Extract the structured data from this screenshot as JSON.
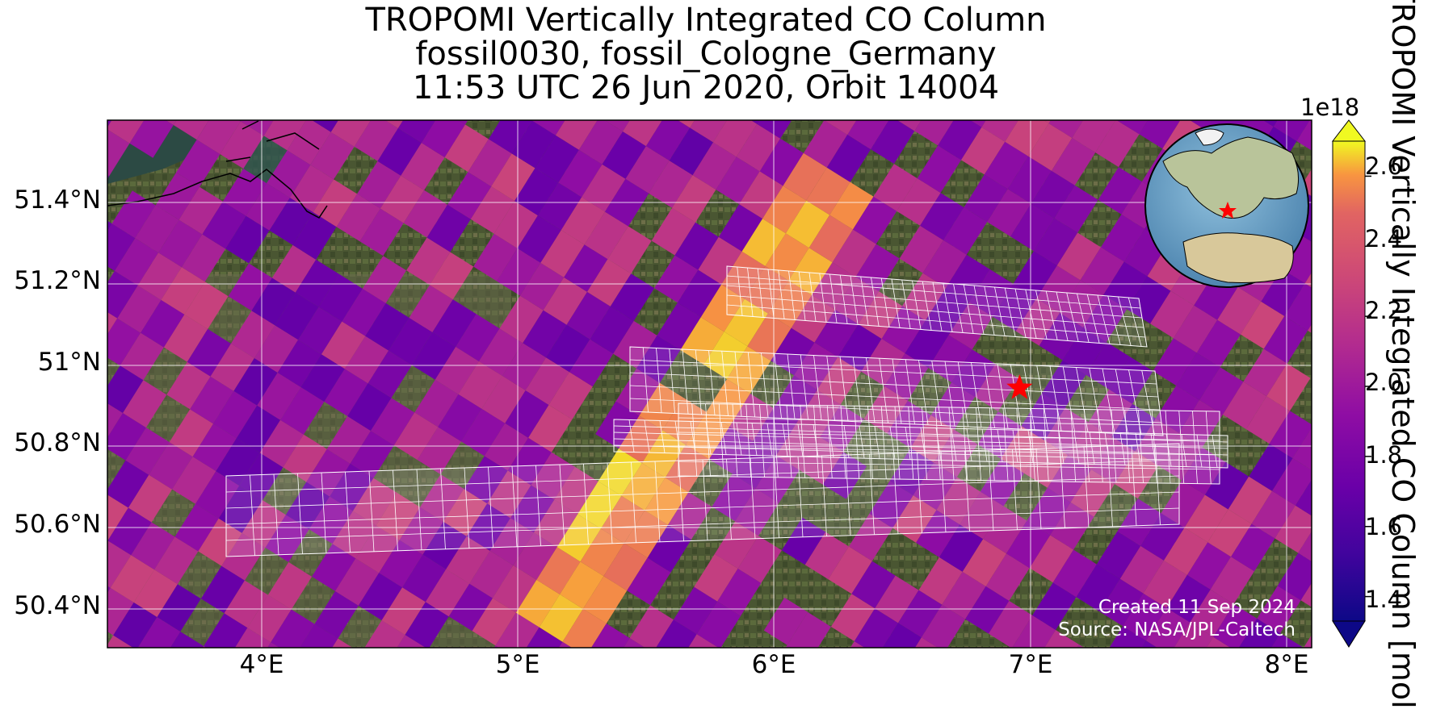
{
  "title": {
    "line1": "TROPOMI Vertically Integrated CO Column",
    "line2": "fossil0030, fossil_Cologne_Germany",
    "line3": "11:53 UTC 26 Jun 2020, Orbit 14004"
  },
  "axes": {
    "lat_labels": [
      "51.4°N",
      "51.2°N",
      "51°N",
      "50.8°N",
      "50.6°N",
      "50.4°N"
    ],
    "lon_labels": [
      "4°E",
      "5°E",
      "6°E",
      "7°E",
      "8°E"
    ]
  },
  "colorbar": {
    "label": "TROPOMI Vertically Integrated CO Column [mol",
    "exponent": "1e18",
    "ticks": [
      "2.6",
      "2.4",
      "2.2",
      "2.0",
      "1.8",
      "1.6",
      "1.4"
    ],
    "range": [
      1.33,
      2.7
    ],
    "colormap": "plasma",
    "extend": "both"
  },
  "credits": {
    "created": "Created 11 Sep 2024",
    "source": "Source: NASA/JPL-Caltech"
  },
  "map": {
    "projection": "PlateCarree",
    "lon_range": [
      3.4,
      8.1
    ],
    "lat_range": [
      50.3,
      51.6
    ],
    "basemap": "satellite imagery",
    "target_marker": {
      "symbol": "star",
      "color": "#ff0000",
      "lon": 6.96,
      "lat": 50.94
    },
    "target_grid_color": "#ffffff",
    "inset": "orthographic globe with target location marked by a red star"
  },
  "colors": {
    "star": "#ff0000",
    "grid": "#ffffff",
    "land": "#3f4a2a",
    "ocean": "#2f5a54",
    "globe_ocean": "#6fa4c8"
  }
}
